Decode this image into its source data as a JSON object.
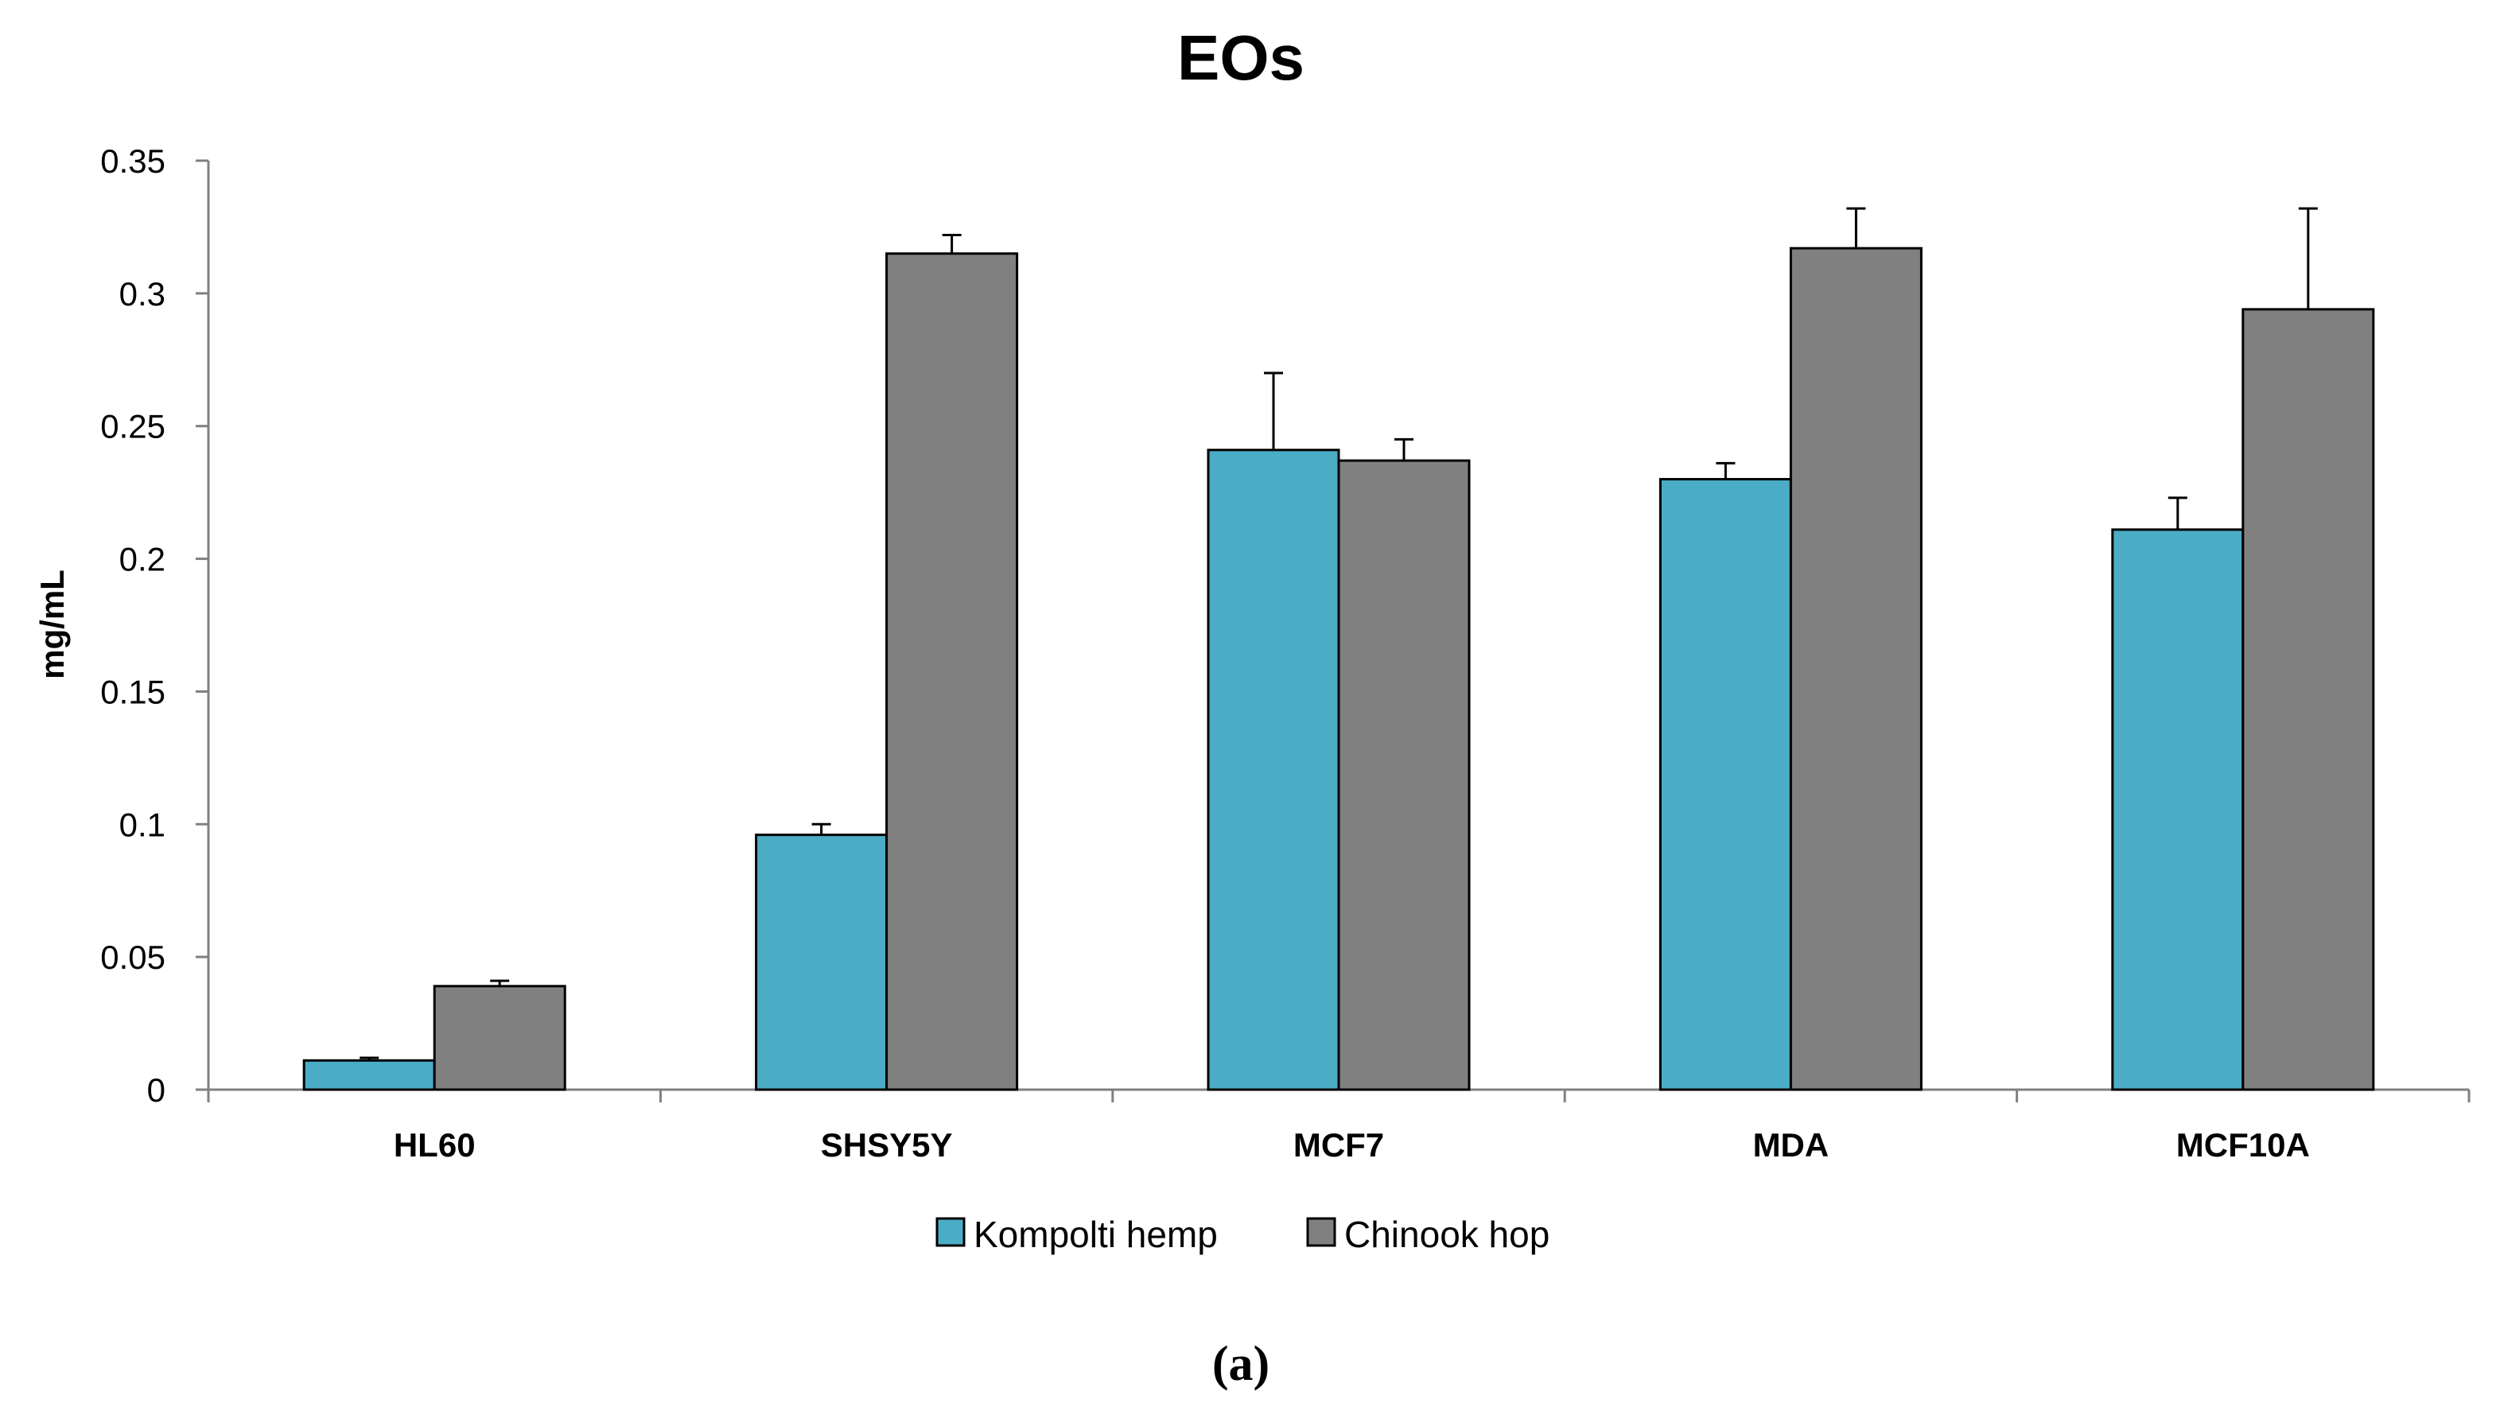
{
  "chart_data": {
    "type": "bar",
    "title": "EOs",
    "xlabel": "",
    "ylabel": "mg/mL",
    "ylim": [
      0,
      0.35
    ],
    "yticks": [
      0,
      0.05,
      0.1,
      0.15,
      0.2,
      0.25,
      0.3,
      0.35
    ],
    "ytick_labels": [
      "0",
      "0.05",
      "0.1",
      "0.15",
      "0.2",
      "0.25",
      "0.3",
      "0.35"
    ],
    "categories": [
      "HL60",
      "SHSY5Y",
      "MCF7",
      "MDA",
      "MCF10A"
    ],
    "series": [
      {
        "name": "Kompolti hemp",
        "color": "#4bacc6",
        "values": [
          0.011,
          0.096,
          0.241,
          0.23,
          0.211
        ],
        "errors": [
          0.001,
          0.004,
          0.029,
          0.006,
          0.012
        ]
      },
      {
        "name": "Chinook hop",
        "color": "#808080",
        "values": [
          0.039,
          0.315,
          0.237,
          0.317,
          0.294
        ],
        "errors": [
          0.002,
          0.007,
          0.008,
          0.015,
          0.038
        ]
      }
    ],
    "legend_position": "bottom-center",
    "grid": false
  },
  "caption": "(a)"
}
